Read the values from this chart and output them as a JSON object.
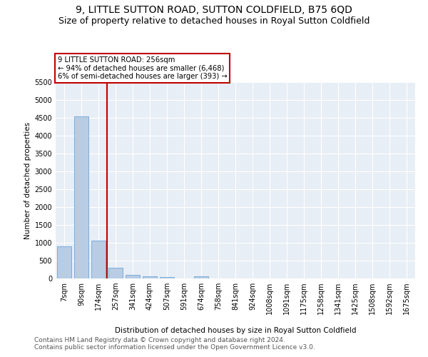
{
  "title": "9, LITTLE SUTTON ROAD, SUTTON COLDFIELD, B75 6QD",
  "subtitle": "Size of property relative to detached houses in Royal Sutton Coldfield",
  "xlabel": "Distribution of detached houses by size in Royal Sutton Coldfield",
  "ylabel": "Number of detached properties",
  "footnote1": "Contains HM Land Registry data © Crown copyright and database right 2024.",
  "footnote2": "Contains public sector information licensed under the Open Government Licence v3.0.",
  "bar_labels": [
    "7sqm",
    "90sqm",
    "174sqm",
    "257sqm",
    "341sqm",
    "424sqm",
    "507sqm",
    "591sqm",
    "674sqm",
    "758sqm",
    "841sqm",
    "924sqm",
    "1008sqm",
    "1091sqm",
    "1175sqm",
    "1258sqm",
    "1341sqm",
    "1425sqm",
    "1508sqm",
    "1592sqm",
    "1675sqm"
  ],
  "bar_values": [
    900,
    4550,
    1060,
    300,
    95,
    70,
    50,
    0,
    60,
    0,
    0,
    0,
    0,
    0,
    0,
    0,
    0,
    0,
    0,
    0,
    0
  ],
  "bar_color": "#b8cce4",
  "bar_edge_color": "#7aaddc",
  "annotation_line1": "9 LITTLE SUTTON ROAD: 256sqm",
  "annotation_line2": "← 94% of detached houses are smaller (6,468)",
  "annotation_line3": "6% of semi-detached houses are larger (393) →",
  "vline_x": 2.5,
  "vline_color": "#c00000",
  "ylim": [
    0,
    5500
  ],
  "yticks": [
    0,
    500,
    1000,
    1500,
    2000,
    2500,
    3000,
    3500,
    4000,
    4500,
    5000,
    5500
  ],
  "bg_color": "#e8eef5",
  "title_fontsize": 10,
  "subtitle_fontsize": 9,
  "axis_label_fontsize": 7.5,
  "tick_fontsize": 7,
  "footnote_fontsize": 6.5
}
